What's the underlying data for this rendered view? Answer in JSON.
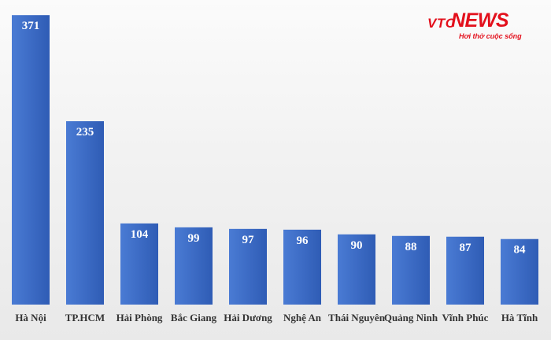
{
  "brand": {
    "logo_vtc": "VTC",
    "logo_news": "NEWS",
    "tagline": "Hơi thở cuộc sống",
    "color": "#e3101c"
  },
  "chart_data": {
    "type": "bar",
    "title": "",
    "xlabel": "",
    "ylabel": "",
    "categories": [
      "Hà Nội",
      "TP.HCM",
      "Hải Phòng",
      "Bắc Giang",
      "Hải Dương",
      "Nghệ An",
      "Thái Nguyên",
      "Quảng Ninh",
      "Vĩnh Phúc",
      "Hà Tĩnh"
    ],
    "values": [
      371,
      235,
      104,
      99,
      97,
      96,
      90,
      88,
      87,
      84
    ],
    "ylim": [
      0,
      400
    ],
    "grid": false,
    "legend": "none",
    "bar_color": "#3f6fc9",
    "bar_color_dark": "#2f5cb5",
    "data_labels": true
  }
}
